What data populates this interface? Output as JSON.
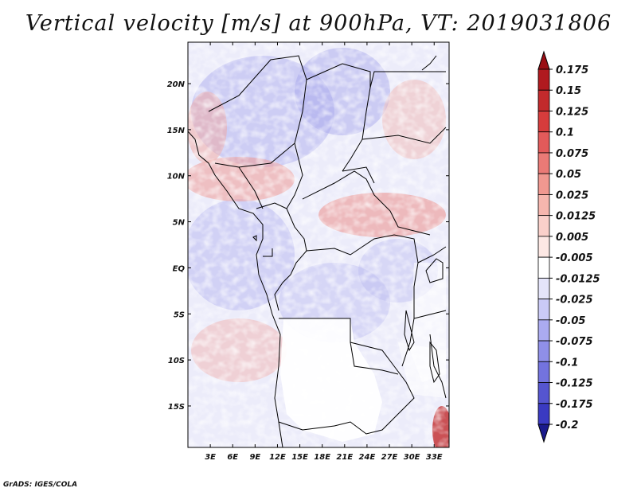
{
  "title": "Vertical velocity [m/s] at 900hPa, VT: 2019031806",
  "credit": "GrADS: IGES/COLA",
  "map": {
    "lon_range": [
      0,
      35
    ],
    "lat_range": [
      -19.5,
      24.5
    ],
    "x_ticks": [
      {
        "value": 3,
        "label": "3E"
      },
      {
        "value": 6,
        "label": "6E"
      },
      {
        "value": 9,
        "label": "9E"
      },
      {
        "value": 12,
        "label": "12E"
      },
      {
        "value": 15,
        "label": "15E"
      },
      {
        "value": 18,
        "label": "18E"
      },
      {
        "value": 21,
        "label": "21E"
      },
      {
        "value": 24,
        "label": "24E"
      },
      {
        "value": 27,
        "label": "27E"
      },
      {
        "value": 30,
        "label": "30E"
      },
      {
        "value": 33,
        "label": "33E"
      }
    ],
    "y_ticks": [
      {
        "value": 20,
        "label": "20N"
      },
      {
        "value": 15,
        "label": "15N"
      },
      {
        "value": 10,
        "label": "10N"
      },
      {
        "value": 5,
        "label": "5N"
      },
      {
        "value": 0,
        "label": "EQ"
      },
      {
        "value": -5,
        "label": "5S"
      },
      {
        "value": -10,
        "label": "10S"
      },
      {
        "value": -15,
        "label": "15S"
      }
    ]
  },
  "colorbar": {
    "levels": [
      {
        "label": "0.175",
        "color": "#b01a1f"
      },
      {
        "label": "0.15",
        "color": "#c22a2c"
      },
      {
        "label": "0.125",
        "color": "#d63c3c"
      },
      {
        "label": "0.1",
        "color": "#e25a5a"
      },
      {
        "label": "0.075",
        "color": "#ea7a76"
      },
      {
        "label": "0.05",
        "color": "#f09890"
      },
      {
        "label": "0.025",
        "color": "#f6b6ae"
      },
      {
        "label": "0.0125",
        "color": "#fad0ca"
      },
      {
        "label": "0.005",
        "color": "#fde8e4"
      },
      {
        "label": "-0.005",
        "color": "#ffffff"
      },
      {
        "label": "-0.0125",
        "color": "#e4e4fa"
      },
      {
        "label": "-0.025",
        "color": "#cacaf6"
      },
      {
        "label": "-0.05",
        "color": "#ababf0"
      },
      {
        "label": "-0.075",
        "color": "#8f8fe8"
      },
      {
        "label": "-0.1",
        "color": "#7373de"
      },
      {
        "label": "-0.125",
        "color": "#5555d0"
      },
      {
        "label": "-0.175",
        "color": "#3a3ac2"
      },
      {
        "label": "-0.2",
        "color": "#1f1fa8"
      }
    ],
    "top_color": "#9a0e14",
    "bottom_color": "#1a1a8c"
  }
}
